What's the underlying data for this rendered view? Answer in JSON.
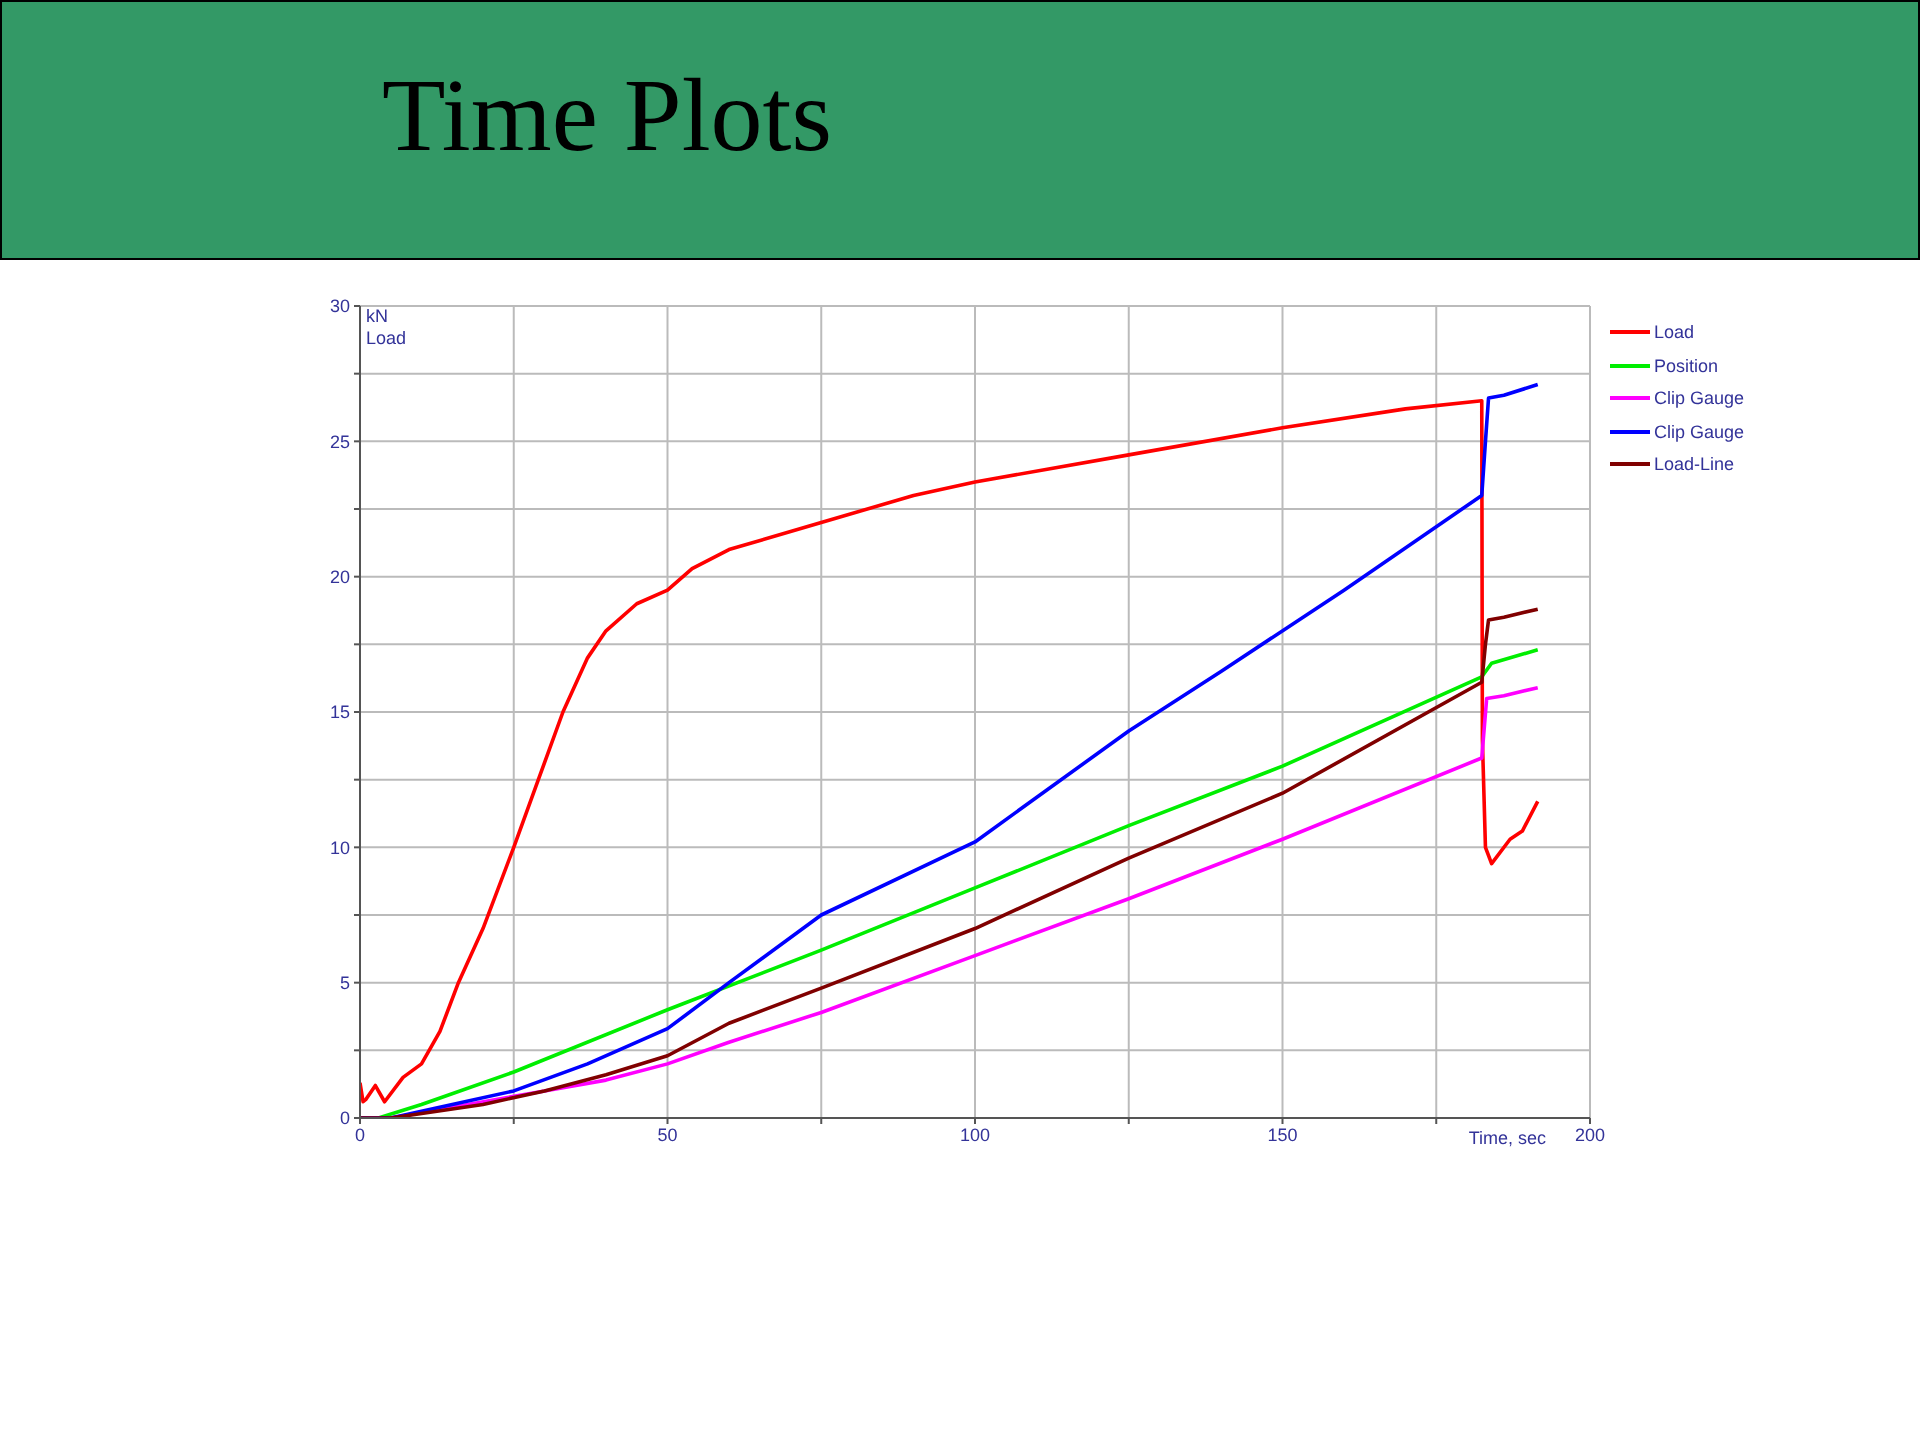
{
  "chart_data": {
    "type": "line",
    "title": "Time Plots",
    "xlabel": "Time, sec",
    "ylabel": "kN\nLoad",
    "xlim": [
      0,
      200
    ],
    "ylim": [
      0,
      30
    ],
    "xticks": [
      0,
      {
        "value": 25,
        "label": null
      },
      50,
      {
        "value": 75,
        "label": null
      },
      100,
      {
        "value": 125,
        "label": null
      },
      150,
      {
        "value": 175,
        "label": null
      },
      200
    ],
    "yticks": [
      0,
      {
        "value": 2.5,
        "label": null
      },
      5,
      {
        "value": 7.5,
        "label": null
      },
      10,
      {
        "value": 12.5,
        "label": null
      },
      15,
      {
        "value": 17.5,
        "label": null
      },
      20,
      {
        "value": 22.5,
        "label": null
      },
      25,
      {
        "value": 27.5,
        "label": null
      },
      30
    ],
    "grid": true,
    "legend": "top right",
    "marker": "none",
    "line_style": "solid",
    "series": [
      {
        "name": "Load",
        "color": "#ff0000",
        "x": [
          0,
          0.5,
          1,
          2.5,
          4,
          7,
          10,
          13,
          16,
          20,
          25,
          29,
          33,
          37,
          40,
          45,
          50,
          54,
          60,
          75,
          90,
          100,
          125,
          150,
          170,
          182.4,
          182.5,
          183,
          184,
          187,
          189,
          191.5
        ],
        "values": [
          1.3,
          0.6,
          0.7,
          1.2,
          0.6,
          1.5,
          2,
          3.2,
          5,
          7,
          10,
          12.5,
          15,
          17,
          18,
          19,
          19.5,
          20.3,
          21,
          22,
          23,
          23.5,
          24.5,
          25.5,
          26.2,
          26.5,
          14,
          10,
          9.4,
          10.3,
          10.6,
          11.7
        ]
      },
      {
        "name": "Position",
        "color": "#00ee00",
        "x": [
          0,
          3,
          10,
          25,
          50,
          75,
          100,
          125,
          150,
          182.4,
          184,
          191.5
        ],
        "values": [
          0,
          0,
          0.5,
          1.7,
          4,
          6.2,
          8.5,
          10.8,
          13,
          16.3,
          16.8,
          17.3
        ]
      },
      {
        "name": "Clip Gauge",
        "color": "#ff00ff",
        "x": [
          0,
          5,
          15,
          30,
          40,
          50,
          60,
          75,
          100,
          125,
          150,
          182.4,
          183.2,
          186,
          191.5
        ],
        "values": [
          0,
          0,
          0.4,
          1,
          1.4,
          2,
          2.8,
          3.9,
          6,
          8.1,
          10.3,
          13.3,
          15.5,
          15.6,
          15.9
        ]
      },
      {
        "name": "Clip Gauge",
        "color": "#0000ff",
        "x": [
          0,
          5,
          15,
          25,
          37,
          50,
          60,
          75,
          100,
          125,
          140,
          160,
          182.4,
          183,
          183.5,
          186,
          191.5
        ],
        "values": [
          0,
          0,
          0.5,
          1,
          2,
          3.3,
          5,
          7.5,
          10.2,
          14.3,
          16.5,
          19.5,
          23,
          25,
          26.6,
          26.7,
          27.1
        ]
      },
      {
        "name": "Load-Line",
        "color": "#800000",
        "x": [
          0,
          5,
          20,
          30,
          40,
          50,
          60,
          75,
          100,
          125,
          150,
          182.4,
          183,
          183.5,
          186,
          191.5
        ],
        "values": [
          0,
          0,
          0.5,
          1,
          1.6,
          2.3,
          3.5,
          4.8,
          7,
          9.6,
          12,
          16.1,
          17.5,
          18.4,
          18.5,
          18.8
        ]
      }
    ]
  }
}
